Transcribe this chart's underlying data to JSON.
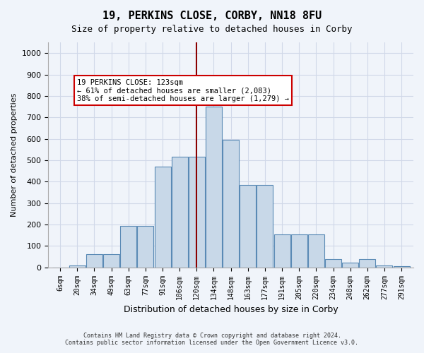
{
  "title1": "19, PERKINS CLOSE, CORBY, NN18 8FU",
  "title2": "Size of property relative to detached houses in Corby",
  "xlabel": "Distribution of detached houses by size in Corby",
  "ylabel": "Number of detached properties",
  "footer1": "Contains HM Land Registry data © Crown copyright and database right 2024.",
  "footer2": "Contains public sector information licensed under the Open Government Licence v3.0.",
  "categories": [
    "6sqm",
    "20sqm",
    "34sqm",
    "49sqm",
    "63sqm",
    "77sqm",
    "91sqm",
    "106sqm",
    "120sqm",
    "134sqm",
    "148sqm",
    "163sqm",
    "177sqm",
    "191sqm",
    "205sqm",
    "220sqm",
    "234sqm",
    "248sqm",
    "262sqm",
    "277sqm",
    "291sqm"
  ],
  "values": [
    0,
    10,
    63,
    63,
    195,
    195,
    470,
    515,
    515,
    750,
    595,
    385,
    385,
    155,
    155,
    155,
    38,
    22,
    40,
    10,
    5
  ],
  "bar_color": "#c8d8e8",
  "bar_edge_color": "#5a8ab5",
  "vline_x": 9.5,
  "vline_color": "#8b0000",
  "annotation_text": "19 PERKINS CLOSE: 123sqm\n← 61% of detached houses are smaller (2,083)\n38% of semi-detached houses are larger (1,279) →",
  "annotation_box_color": "#ffffff",
  "annotation_box_edge": "#cc0000",
  "ylim": [
    0,
    1050
  ],
  "yticks": [
    0,
    100,
    200,
    300,
    400,
    500,
    600,
    700,
    800,
    900,
    1000
  ],
  "grid_color": "#d0d8e8",
  "bg_color": "#f0f4fa"
}
